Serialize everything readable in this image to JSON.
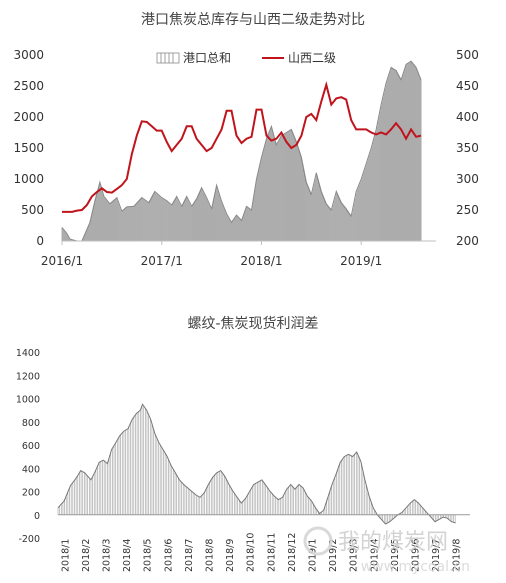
{
  "chart_data": [
    {
      "type": "bar+line",
      "title": "港口焦炭总库存与山西二级走势对比",
      "legend": [
        "港口总和",
        "山西二级"
      ],
      "legend_position": "top-right",
      "x_ticks": [
        "2016/1",
        "2017/1",
        "2018/1",
        "2019/1"
      ],
      "y_left": {
        "ticks": [
          0,
          500,
          1000,
          1500,
          2000,
          2500,
          3000
        ],
        "range": [
          0,
          3000
        ]
      },
      "y_right": {
        "ticks": [
          200,
          250,
          300,
          350,
          400,
          450,
          500
        ],
        "range": [
          200,
          500
        ]
      },
      "x_range": [
        2016.0,
        2019.75
      ],
      "colors": {
        "bars": "#8a8a8a",
        "line": "#c0141c"
      },
      "series": [
        {
          "name": "港口总和",
          "axis": "left",
          "points": [
            [
              2016.0,
              220
            ],
            [
              2016.05,
              120
            ],
            [
              2016.08,
              30
            ],
            [
              2016.15,
              0
            ],
            [
              2016.2,
              0
            ],
            [
              2016.28,
              300
            ],
            [
              2016.33,
              650
            ],
            [
              2016.38,
              950
            ],
            [
              2016.42,
              720
            ],
            [
              2016.48,
              600
            ],
            [
              2016.55,
              700
            ],
            [
              2016.6,
              480
            ],
            [
              2016.65,
              550
            ],
            [
              2016.72,
              560
            ],
            [
              2016.8,
              700
            ],
            [
              2016.87,
              620
            ],
            [
              2016.93,
              800
            ],
            [
              2017.0,
              700
            ],
            [
              2017.05,
              650
            ],
            [
              2017.1,
              580
            ],
            [
              2017.15,
              720
            ],
            [
              2017.2,
              560
            ],
            [
              2017.25,
              720
            ],
            [
              2017.3,
              560
            ],
            [
              2017.35,
              680
            ],
            [
              2017.4,
              860
            ],
            [
              2017.45,
              700
            ],
            [
              2017.5,
              520
            ],
            [
              2017.55,
              900
            ],
            [
              2017.6,
              640
            ],
            [
              2017.65,
              440
            ],
            [
              2017.7,
              300
            ],
            [
              2017.75,
              420
            ],
            [
              2017.8,
              330
            ],
            [
              2017.85,
              560
            ],
            [
              2017.9,
              500
            ],
            [
              2017.95,
              1000
            ],
            [
              2018.0,
              1350
            ],
            [
              2018.05,
              1650
            ],
            [
              2018.1,
              1850
            ],
            [
              2018.15,
              1550
            ],
            [
              2018.2,
              1700
            ],
            [
              2018.25,
              1750
            ],
            [
              2018.3,
              1800
            ],
            [
              2018.35,
              1600
            ],
            [
              2018.4,
              1350
            ],
            [
              2018.45,
              950
            ],
            [
              2018.5,
              750
            ],
            [
              2018.55,
              1100
            ],
            [
              2018.6,
              800
            ],
            [
              2018.65,
              600
            ],
            [
              2018.7,
              500
            ],
            [
              2018.75,
              800
            ],
            [
              2018.8,
              620
            ],
            [
              2018.85,
              520
            ],
            [
              2018.9,
              400
            ],
            [
              2018.95,
              800
            ],
            [
              2019.0,
              1000
            ],
            [
              2019.05,
              1250
            ],
            [
              2019.1,
              1500
            ],
            [
              2019.15,
              1800
            ],
            [
              2019.2,
              2200
            ],
            [
              2019.25,
              2550
            ],
            [
              2019.3,
              2800
            ],
            [
              2019.35,
              2750
            ],
            [
              2019.4,
              2600
            ],
            [
              2019.45,
              2850
            ],
            [
              2019.5,
              2900
            ],
            [
              2019.55,
              2800
            ],
            [
              2019.6,
              2600
            ]
          ]
        },
        {
          "name": "山西二级",
          "axis": "right",
          "points": [
            [
              2016.0,
              247
            ],
            [
              2016.1,
              247
            ],
            [
              2016.15,
              249
            ],
            [
              2016.2,
              250
            ],
            [
              2016.25,
              258
            ],
            [
              2016.3,
              272
            ],
            [
              2016.35,
              279
            ],
            [
              2016.4,
              285
            ],
            [
              2016.45,
              279
            ],
            [
              2016.5,
              278
            ],
            [
              2016.55,
              284
            ],
            [
              2016.6,
              290
            ],
            [
              2016.65,
              300
            ],
            [
              2016.7,
              340
            ],
            [
              2016.75,
              370
            ],
            [
              2016.8,
              393
            ],
            [
              2016.85,
              392
            ],
            [
              2016.9,
              385
            ],
            [
              2016.95,
              378
            ],
            [
              2017.0,
              378
            ],
            [
              2017.05,
              360
            ],
            [
              2017.1,
              345
            ],
            [
              2017.15,
              355
            ],
            [
              2017.2,
              365
            ],
            [
              2017.25,
              385
            ],
            [
              2017.3,
              385
            ],
            [
              2017.35,
              365
            ],
            [
              2017.4,
              355
            ],
            [
              2017.45,
              345
            ],
            [
              2017.5,
              350
            ],
            [
              2017.55,
              365
            ],
            [
              2017.6,
              380
            ],
            [
              2017.65,
              410
            ],
            [
              2017.7,
              410
            ],
            [
              2017.75,
              370
            ],
            [
              2017.8,
              358
            ],
            [
              2017.85,
              365
            ],
            [
              2017.9,
              368
            ],
            [
              2017.95,
              412
            ],
            [
              2018.0,
              412
            ],
            [
              2018.05,
              370
            ],
            [
              2018.1,
              362
            ],
            [
              2018.15,
              365
            ],
            [
              2018.2,
              375
            ],
            [
              2018.25,
              360
            ],
            [
              2018.3,
              350
            ],
            [
              2018.35,
              355
            ],
            [
              2018.4,
              370
            ],
            [
              2018.45,
              400
            ],
            [
              2018.5,
              405
            ],
            [
              2018.55,
              395
            ],
            [
              2018.6,
              425
            ],
            [
              2018.65,
              452
            ],
            [
              2018.7,
              420
            ],
            [
              2018.75,
              430
            ],
            [
              2018.8,
              432
            ],
            [
              2018.85,
              428
            ],
            [
              2018.9,
              395
            ],
            [
              2018.95,
              380
            ],
            [
              2019.0,
              380
            ],
            [
              2019.05,
              380
            ],
            [
              2019.1,
              375
            ],
            [
              2019.15,
              372
            ],
            [
              2019.2,
              375
            ],
            [
              2019.25,
              372
            ],
            [
              2019.3,
              380
            ],
            [
              2019.35,
              390
            ],
            [
              2019.4,
              380
            ],
            [
              2019.45,
              365
            ],
            [
              2019.5,
              380
            ],
            [
              2019.55,
              368
            ],
            [
              2019.6,
              370
            ]
          ]
        }
      ]
    },
    {
      "type": "bar",
      "title": "螺纹-焦炭现货利润差",
      "x_ticks": [
        "2018/1",
        "2018/2",
        "2018/3",
        "2018/4",
        "2018/5",
        "2018/6",
        "2018/7",
        "2018/8",
        "2018/9",
        "2018/10",
        "2018/11",
        "2018/12",
        "2019/1",
        "2019/2",
        "2019/3",
        "2019/4",
        "2019/5",
        "2019/6",
        "2019/7",
        "2019/8"
      ],
      "y": {
        "ticks": [
          -200,
          0,
          200,
          400,
          600,
          800,
          1000,
          1200,
          1400
        ],
        "range": [
          -200,
          1400
        ]
      },
      "x_range": [
        0,
        20
      ],
      "colors": {
        "bars": "#aaaaaa",
        "line": "#777777"
      },
      "points": [
        [
          0.0,
          60
        ],
        [
          0.3,
          120
        ],
        [
          0.6,
          250
        ],
        [
          0.9,
          320
        ],
        [
          1.1,
          380
        ],
        [
          1.3,
          360
        ],
        [
          1.6,
          300
        ],
        [
          1.8,
          370
        ],
        [
          2.0,
          450
        ],
        [
          2.2,
          470
        ],
        [
          2.4,
          440
        ],
        [
          2.6,
          560
        ],
        [
          2.8,
          620
        ],
        [
          3.0,
          680
        ],
        [
          3.2,
          720
        ],
        [
          3.4,
          740
        ],
        [
          3.6,
          820
        ],
        [
          3.8,
          870
        ],
        [
          4.0,
          900
        ],
        [
          4.1,
          950
        ],
        [
          4.3,
          900
        ],
        [
          4.5,
          820
        ],
        [
          4.7,
          700
        ],
        [
          4.9,
          620
        ],
        [
          5.1,
          560
        ],
        [
          5.3,
          500
        ],
        [
          5.5,
          420
        ],
        [
          5.7,
          360
        ],
        [
          5.9,
          300
        ],
        [
          6.1,
          260
        ],
        [
          6.3,
          230
        ],
        [
          6.5,
          200
        ],
        [
          6.7,
          170
        ],
        [
          6.9,
          150
        ],
        [
          7.1,
          190
        ],
        [
          7.3,
          260
        ],
        [
          7.5,
          320
        ],
        [
          7.7,
          360
        ],
        [
          7.9,
          380
        ],
        [
          8.1,
          330
        ],
        [
          8.3,
          260
        ],
        [
          8.5,
          200
        ],
        [
          8.7,
          150
        ],
        [
          8.9,
          100
        ],
        [
          9.1,
          140
        ],
        [
          9.3,
          200
        ],
        [
          9.5,
          260
        ],
        [
          9.7,
          280
        ],
        [
          9.9,
          300
        ],
        [
          10.1,
          250
        ],
        [
          10.3,
          200
        ],
        [
          10.5,
          160
        ],
        [
          10.7,
          130
        ],
        [
          10.9,
          150
        ],
        [
          11.1,
          220
        ],
        [
          11.3,
          260
        ],
        [
          11.5,
          220
        ],
        [
          11.7,
          260
        ],
        [
          11.9,
          230
        ],
        [
          12.1,
          160
        ],
        [
          12.3,
          120
        ],
        [
          12.5,
          60
        ],
        [
          12.7,
          10
        ],
        [
          12.9,
          40
        ],
        [
          13.1,
          150
        ],
        [
          13.3,
          260
        ],
        [
          13.5,
          350
        ],
        [
          13.7,
          450
        ],
        [
          13.9,
          500
        ],
        [
          14.1,
          520
        ],
        [
          14.3,
          500
        ],
        [
          14.5,
          540
        ],
        [
          14.7,
          460
        ],
        [
          14.9,
          300
        ],
        [
          15.1,
          160
        ],
        [
          15.3,
          60
        ],
        [
          15.5,
          0
        ],
        [
          15.7,
          -40
        ],
        [
          15.9,
          -80
        ],
        [
          16.1,
          -60
        ],
        [
          16.3,
          -30
        ],
        [
          16.5,
          0
        ],
        [
          16.7,
          20
        ],
        [
          16.9,
          60
        ],
        [
          17.1,
          100
        ],
        [
          17.3,
          130
        ],
        [
          17.5,
          100
        ],
        [
          17.7,
          60
        ],
        [
          17.9,
          20
        ],
        [
          18.1,
          -20
        ],
        [
          18.3,
          -60
        ],
        [
          18.5,
          -40
        ],
        [
          18.7,
          -20
        ],
        [
          18.9,
          -30
        ],
        [
          19.1,
          -60
        ],
        [
          19.3,
          -70
        ]
      ]
    }
  ],
  "watermark": {
    "cn": "我的煤炭网",
    "url": "www.mycoal.cn"
  }
}
